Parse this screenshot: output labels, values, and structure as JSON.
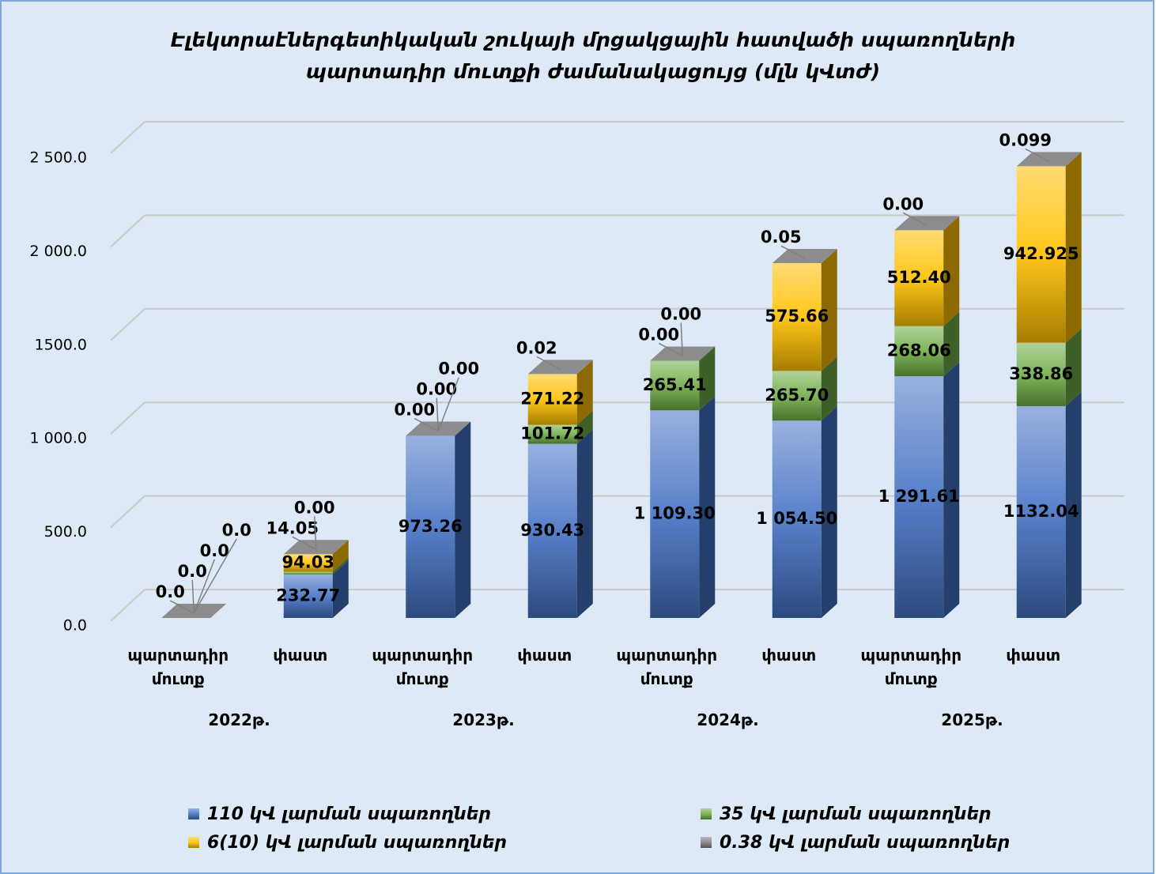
{
  "chart_data": {
    "type": "bar3d_stacked",
    "title": [
      "Էլեկտրաէներգետիկական շուկայի մրցակցային հատվածի սպառողների",
      "պարտադիր մուտքի ժամանակացույց (մլն կՎտժ)"
    ],
    "categories": [
      "պարտադիր մուտք",
      "փաստ",
      "պարտադիր մուտք",
      "փաստ",
      "պարտադիր մուտք",
      "փաստ",
      "պարտադիր մուտք",
      "փաստ"
    ],
    "groups": [
      "2022թ.",
      "2023թ.",
      "2024թ.",
      "2025թ."
    ],
    "ylim": [
      0,
      2500
    ],
    "yticks": [
      {
        "value": 0,
        "label": "0.0"
      },
      {
        "value": 500,
        "label": "500.0"
      },
      {
        "value": 1000,
        "label": "1 000.0"
      },
      {
        "value": 1500,
        "label": "1500.0"
      },
      {
        "value": 2000,
        "label": "2 000.0"
      },
      {
        "value": 2500,
        "label": "2 500.0"
      }
    ],
    "grid": true,
    "legend": "bottom",
    "series": [
      {
        "name": "110 կՎ լարման սպառողներ",
        "color": "#4472c4",
        "values": [
          0,
          232.77,
          973.26,
          930.43,
          1109.3,
          1054.5,
          1291.61,
          1132.04
        ],
        "value_labels": [
          "0.0",
          "232.77",
          "973.26",
          "930.43",
          "1 109.30",
          "1 054.50",
          "1 291.61",
          "1132.04"
        ]
      },
      {
        "name": "35 կՎ լարման սպառողներ",
        "color": "#70ad47",
        "values": [
          0,
          14.05,
          0,
          101.72,
          265.41,
          265.7,
          268.06,
          338.86
        ],
        "value_labels": [
          "0.0",
          "14.05",
          "0.00",
          "101.72",
          "265.41",
          "265.70",
          "268.06",
          "338.86"
        ]
      },
      {
        "name": "6(10) կՎ լարման սպառողներ",
        "color": "#ffc000",
        "values": [
          0,
          94.03,
          0,
          271.22,
          0,
          575.66,
          512.4,
          942.925
        ],
        "value_labels": [
          "0.0",
          "94.03",
          "0.00",
          "271.22",
          "0.00",
          "575.66",
          "512.40",
          "942.925"
        ]
      },
      {
        "name": "0.38 կՎ լարման սպառողներ",
        "color": "#7f7f7f",
        "values": [
          0,
          0,
          0,
          0.02,
          0,
          0.05,
          0,
          0.099
        ],
        "value_labels": [
          "0.0",
          "0.00",
          "0.00",
          "0.02",
          "0.00",
          "0.05",
          "0.00",
          "0.099"
        ]
      }
    ]
  }
}
